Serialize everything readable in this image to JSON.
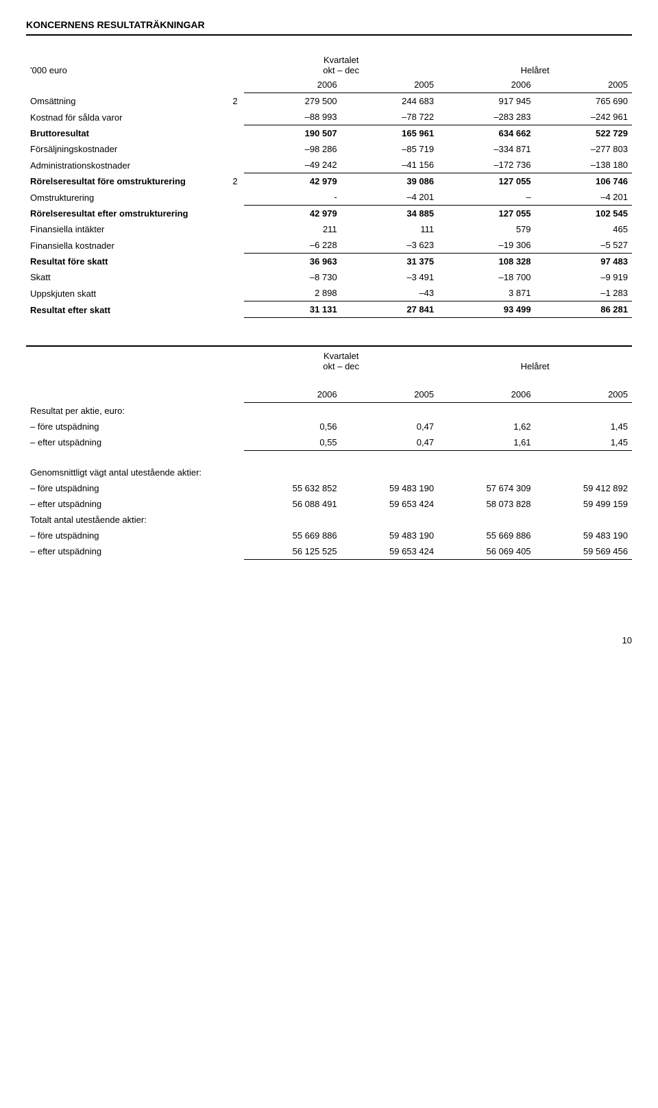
{
  "title": "KONCERNENS RESULTATRÄKNINGAR",
  "periods": {
    "unit_label": "'000 euro",
    "quarter": "Kvartalet\nokt – dec",
    "year": "Helåret",
    "y2006": "2006",
    "y2005": "2005"
  },
  "income": {
    "rows": [
      {
        "label": "Omsättning",
        "note": "2",
        "c1": "279 500",
        "c2": "244 683",
        "c3": "917 945",
        "c4": "765 690",
        "bold": false,
        "top": false
      },
      {
        "label": "Kostnad för sålda varor",
        "note": "",
        "c1": "–88 993",
        "c2": "–78 722",
        "c3": "–283 283",
        "c4": "–242 961",
        "bold": false,
        "top": false
      },
      {
        "label": "Bruttoresultat",
        "note": "",
        "c1": "190 507",
        "c2": "165 961",
        "c3": "634 662",
        "c4": "522 729",
        "bold": true,
        "top": true
      },
      {
        "label": "Försäljningskostnader",
        "note": "",
        "c1": "–98 286",
        "c2": "–85 719",
        "c3": "–334 871",
        "c4": "–277 803",
        "bold": false,
        "top": false
      },
      {
        "label": "Administrationskostnader",
        "note": "",
        "c1": "–49 242",
        "c2": "–41 156",
        "c3": "–172 736",
        "c4": "–138 180",
        "bold": false,
        "top": false
      },
      {
        "label": "Rörelseresultat före omstrukturering",
        "note": "2",
        "c1": "42 979",
        "c2": "39 086",
        "c3": "127 055",
        "c4": "106 746",
        "bold": true,
        "top": true
      },
      {
        "label": "Omstrukturering",
        "note": "",
        "c1": "-",
        "c2": "–4 201",
        "c3": "–",
        "c4": "–4 201",
        "bold": false,
        "top": false
      },
      {
        "label": "Rörelseresultat efter omstrukturering",
        "note": "",
        "c1": "42 979",
        "c2": "34 885",
        "c3": "127 055",
        "c4": "102 545",
        "bold": true,
        "top": true
      },
      {
        "label": "Finansiella intäkter",
        "note": "",
        "c1": "211",
        "c2": "111",
        "c3": "579",
        "c4": "465",
        "bold": false,
        "top": false
      },
      {
        "label": "Finansiella kostnader",
        "note": "",
        "c1": "–6 228",
        "c2": "–3 623",
        "c3": "–19 306",
        "c4": "–5 527",
        "bold": false,
        "top": false
      },
      {
        "label": "Resultat före skatt",
        "note": "",
        "c1": "36 963",
        "c2": "31 375",
        "c3": "108 328",
        "c4": "97 483",
        "bold": true,
        "top": true
      },
      {
        "label": "Skatt",
        "note": "",
        "c1": "–8 730",
        "c2": "–3 491",
        "c3": "–18 700",
        "c4": "–9 919",
        "bold": false,
        "top": false
      },
      {
        "label": "Uppskjuten skatt",
        "note": "",
        "c1": "2 898",
        "c2": "–43",
        "c3": "3 871",
        "c4": "–1 283",
        "bold": false,
        "top": false
      },
      {
        "label": "Resultat efter skatt",
        "note": "",
        "c1": "31 131",
        "c2": "27 841",
        "c3": "93 499",
        "c4": "86 281",
        "bold": true,
        "top": true,
        "bottom": true
      }
    ]
  },
  "eps": {
    "header": "Resultat per aktie, euro:",
    "rows": [
      {
        "label": "– före utspädning",
        "c1": "0,56",
        "c2": "0,47",
        "c3": "1,62",
        "c4": "1,45"
      },
      {
        "label": "– efter utspädning",
        "c1": "0,55",
        "c2": "0,47",
        "c3": "1,61",
        "c4": "1,45",
        "bottom": true
      }
    ]
  },
  "shares": {
    "h1": "Genomsnittligt vägt antal utestående aktier:",
    "h1_rows": [
      {
        "label": "– före utspädning",
        "c1": "55 632 852",
        "c2": "59 483 190",
        "c3": "57 674 309",
        "c4": "59 412 892"
      },
      {
        "label": "– efter utspädning",
        "c1": "56 088 491",
        "c2": "59 653 424",
        "c3": "58 073 828",
        "c4": "59 499 159"
      }
    ],
    "h2": "Totalt antal utestående aktier:",
    "h2_rows": [
      {
        "label": "– före utspädning",
        "c1": "55 669 886",
        "c2": "59 483 190",
        "c3": "55 669 886",
        "c4": "59 483 190"
      },
      {
        "label": "– efter utspädning",
        "c1": "56 125 525",
        "c2": "59 653 424",
        "c3": "56 069 405",
        "c4": "59 569 456",
        "bottom": true
      }
    ]
  },
  "page_number": "10"
}
